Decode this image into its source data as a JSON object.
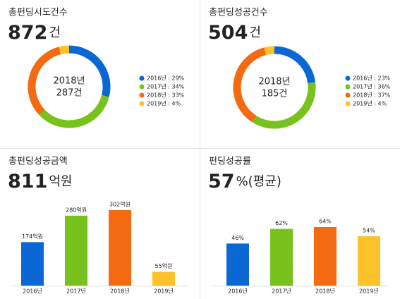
{
  "chart_data": [
    {
      "type": "pie",
      "title": "총펀딩시도건수",
      "total": 872,
      "total_unit": "건",
      "center_text": [
        "2018년",
        "287건"
      ],
      "values": [
        29,
        34,
        33,
        4
      ],
      "value_labels": [
        "2016년 : 29%",
        "2017년 : 34%",
        "2018년 : 33%",
        "2019년 : 4%"
      ],
      "colors": [
        "#0b67d3",
        "#78c21d",
        "#f36a10",
        "#fbc22c"
      ]
    },
    {
      "type": "pie",
      "title": "총펀딩성공건수",
      "total": 504,
      "total_unit": "건",
      "center_text": [
        "2018년",
        "185건"
      ],
      "values": [
        23,
        36,
        37,
        4
      ],
      "value_labels": [
        "2016년 : 23%",
        "2017년 : 36%",
        "2018년 : 37%",
        "2019년 : 4%"
      ],
      "colors": [
        "#0b67d3",
        "#78c21d",
        "#f36a10",
        "#fbc22c"
      ]
    },
    {
      "type": "bar",
      "title": "총펀딩성공금액",
      "total": 811,
      "total_unit": "억원",
      "categories": [
        "2016년",
        "2017년",
        "2018년",
        "2019년"
      ],
      "values": [
        174,
        280,
        302,
        55
      ],
      "value_labels": [
        "174억원",
        "280억원",
        "302억원",
        "55억원"
      ],
      "colors": [
        "#0b67d3",
        "#78c21d",
        "#f36a10",
        "#fbc22c"
      ]
    },
    {
      "type": "bar",
      "title": "펀딩성공률",
      "total": 57,
      "total_unit": "%(평균)",
      "categories": [
        "2016년",
        "2017년",
        "2018년",
        "2019년"
      ],
      "values": [
        46,
        62,
        64,
        54
      ],
      "value_labels": [
        "46%",
        "62%",
        "64%",
        "54%"
      ],
      "colors": [
        "#0b67d3",
        "#78c21d",
        "#f36a10",
        "#fbc22c"
      ]
    }
  ]
}
